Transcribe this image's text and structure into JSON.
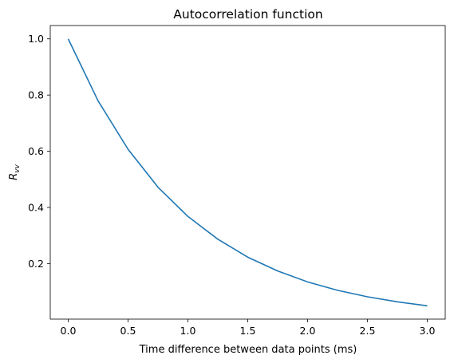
{
  "chart_data": {
    "type": "line",
    "title": "Autocorrelation function",
    "xlabel": "Time difference between data points (ms)",
    "ylabel_main": "R",
    "ylabel_sub": "vv",
    "xlim": [
      -0.15,
      3.15
    ],
    "ylim": [
      0.0025,
      1.0475
    ],
    "x_ticks": [
      0.0,
      0.5,
      1.0,
      1.5,
      2.0,
      2.5,
      3.0
    ],
    "x_tick_labels": [
      "0.0",
      "0.5",
      "1.0",
      "1.5",
      "2.0",
      "2.5",
      "3.0"
    ],
    "y_ticks": [
      0.2,
      0.4,
      0.6,
      0.8,
      1.0
    ],
    "y_tick_labels": [
      "0.2",
      "0.4",
      "0.6",
      "0.8",
      "1.0"
    ],
    "grid": false,
    "series": [
      {
        "color": "#1f77b4",
        "x": [
          0.0,
          0.25,
          0.5,
          0.75,
          1.0,
          1.25,
          1.5,
          1.75,
          2.0,
          2.25,
          2.5,
          2.75,
          3.0
        ],
        "y": [
          1.0,
          0.779,
          0.607,
          0.472,
          0.368,
          0.287,
          0.223,
          0.174,
          0.135,
          0.105,
          0.082,
          0.064,
          0.05
        ]
      }
    ]
  }
}
